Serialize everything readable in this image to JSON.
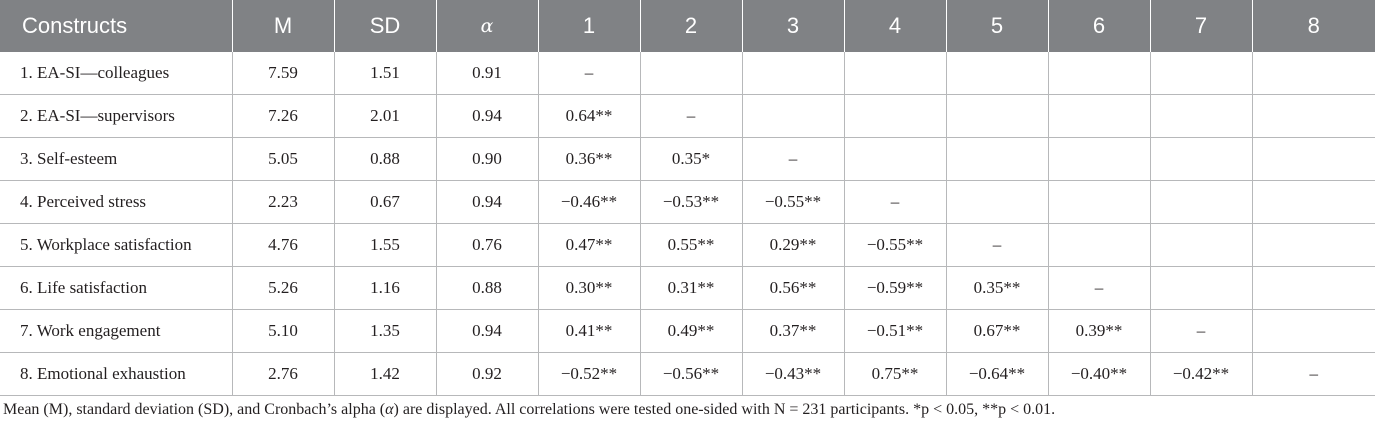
{
  "table": {
    "headers": [
      "Constructs",
      "M",
      "SD",
      "α",
      "1",
      "2",
      "3",
      "4",
      "5",
      "6",
      "7",
      "8"
    ],
    "rows": [
      [
        "1. EA-SI—colleagues",
        "7.59",
        "1.51",
        "0.91",
        "–",
        "",
        "",
        "",
        "",
        "",
        "",
        ""
      ],
      [
        "2. EA-SI—supervisors",
        "7.26",
        "2.01",
        "0.94",
        "0.64**",
        "–",
        "",
        "",
        "",
        "",
        "",
        ""
      ],
      [
        "3. Self-esteem",
        "5.05",
        "0.88",
        "0.90",
        "0.36**",
        "0.35*",
        "–",
        "",
        "",
        "",
        "",
        ""
      ],
      [
        "4. Perceived stress",
        "2.23",
        "0.67",
        "0.94",
        "−0.46**",
        "−0.53**",
        "−0.55**",
        "–",
        "",
        "",
        "",
        ""
      ],
      [
        "5. Workplace satisfaction",
        "4.76",
        "1.55",
        "0.76",
        "0.47**",
        "0.55**",
        "0.29**",
        "−0.55**",
        "–",
        "",
        "",
        ""
      ],
      [
        "6. Life satisfaction",
        "5.26",
        "1.16",
        "0.88",
        "0.30**",
        "0.31**",
        "0.56**",
        "−0.59**",
        "0.35**",
        "–",
        "",
        ""
      ],
      [
        "7. Work engagement",
        "5.10",
        "1.35",
        "0.94",
        "0.41**",
        "0.49**",
        "0.37**",
        "−0.51**",
        "0.67**",
        "0.39**",
        "–",
        ""
      ],
      [
        "8. Emotional exhaustion",
        "2.76",
        "1.42",
        "0.92",
        "−0.52**",
        "−0.56**",
        "−0.43**",
        "0.75**",
        "−0.64**",
        "−0.40**",
        "−0.42**",
        "–"
      ]
    ]
  },
  "footnote": {
    "part1": "Mean (M), standard deviation (SD), and Cronbach’s alpha (",
    "alpha": "α",
    "part2": ") are displayed. All correlations were tested one-sided with N = 231 participants. *p < 0.05, **p < 0.01."
  },
  "colors": {
    "header_bg": "#808285",
    "header_text": "#ffffff",
    "grid_line": "#b7b8ba",
    "body_text": "#231f20"
  }
}
